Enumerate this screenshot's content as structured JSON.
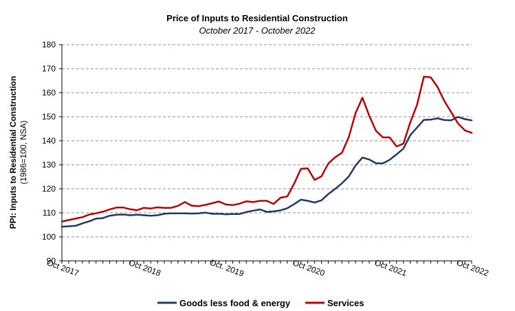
{
  "chart_data": {
    "type": "line",
    "title": "Price of Inputs to Residential Construction",
    "subtitle": "October 2017 - October 2022",
    "ylabel": "PPI: Inputs to Residential Construction",
    "ylabel_sub": "(1986=100, NSA)",
    "xlabel": "",
    "ylim": [
      90,
      180
    ],
    "yticks": [
      90,
      100,
      110,
      120,
      130,
      140,
      150,
      160,
      170,
      180
    ],
    "x_tick_labels": [
      "Oct 2017",
      "Oct 2018",
      "Oct. 2019",
      "Oct 2020",
      "Oct 2021",
      "Oct 2022"
    ],
    "x_tick_months": [
      0,
      12,
      24,
      36,
      48,
      60
    ],
    "x_start": "2017-10",
    "x_end": "2022-10",
    "grid": true,
    "legend_position": "bottom",
    "series": [
      {
        "name": "Goods less food & energy",
        "color": "#1f3864",
        "values": [
          104.2,
          104.4,
          104.6,
          105.6,
          106.5,
          107.6,
          107.8,
          108.8,
          109.2,
          109.3,
          109.0,
          109.2,
          109.0,
          108.8,
          109.0,
          109.6,
          109.8,
          109.8,
          109.8,
          109.7,
          109.8,
          110.1,
          109.6,
          109.6,
          109.4,
          109.5,
          109.5,
          110.3,
          110.9,
          111.4,
          110.4,
          110.6,
          111.0,
          111.9,
          113.6,
          115.5,
          115.0,
          114.3,
          115.2,
          117.8,
          119.9,
          122.3,
          125.1,
          129.7,
          133.0,
          132.2,
          130.6,
          130.6,
          132.1,
          134.3,
          136.7,
          142.3,
          145.5,
          148.7,
          148.8,
          149.3,
          148.6,
          148.5,
          149.9,
          149.0,
          148.5
        ]
      },
      {
        "name": "Services",
        "color": "#c00000",
        "values": [
          106.4,
          107.0,
          107.6,
          108.2,
          109.3,
          109.8,
          110.5,
          111.4,
          112.2,
          112.2,
          111.5,
          111.1,
          112.1,
          111.8,
          112.3,
          112.1,
          112.1,
          112.9,
          114.5,
          113.0,
          112.8,
          113.3,
          114.0,
          114.7,
          113.5,
          113.2,
          113.8,
          114.8,
          114.5,
          115.0,
          115.0,
          113.7,
          116.3,
          116.8,
          122.1,
          128.3,
          128.5,
          123.7,
          125.2,
          130.5,
          133.1,
          135.0,
          141.5,
          151.5,
          157.9,
          150.4,
          144.1,
          141.4,
          141.4,
          137.6,
          138.8,
          147.6,
          154.9,
          166.7,
          166.4,
          162.4,
          156.5,
          151.9,
          147.2,
          144.3,
          143.3
        ]
      }
    ]
  }
}
